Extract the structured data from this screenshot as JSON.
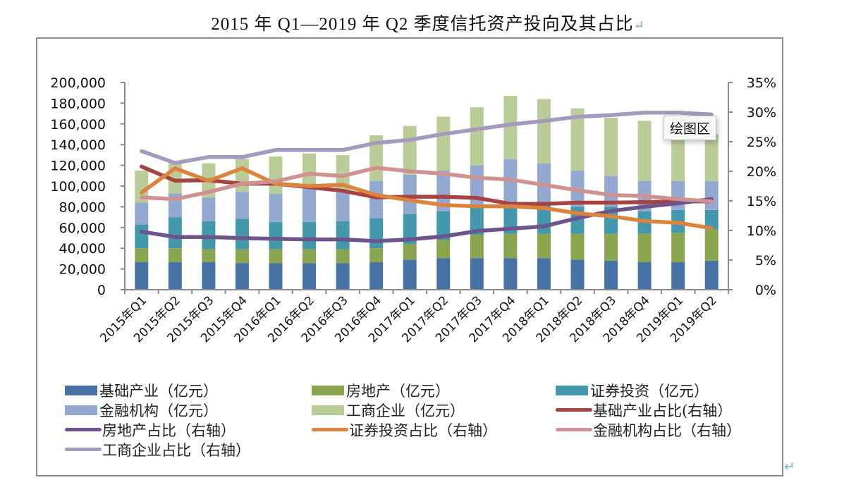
{
  "title": "2015 年 Q1—2019 年 Q2 季度信托资产投向及其占比",
  "return_mark": "↵",
  "tooltip": "绘图区",
  "colors": {
    "infra_bar": "#4672a6",
    "realestate_bar": "#89a54e",
    "securities_bar": "#4398ae",
    "financial_bar": "#93a9d0",
    "commercial_bar": "#bacc98",
    "infra_line": "#a74340",
    "realestate_line": "#6e548c",
    "securities_line": "#db843d",
    "financial_line": "#d09290",
    "commercial_line": "#a599bd"
  },
  "chart_data": {
    "type": "bar",
    "subtype": "stacked-bar-with-lines-dual-axis",
    "title": "2015 年 Q1—2019 年 Q2 季度信托资产投向及其占比",
    "categories": [
      "2015年Q1",
      "2015年Q2",
      "2015年Q3",
      "2015年Q4",
      "2016年Q1",
      "2016年Q2",
      "2016年Q3",
      "2016年Q4",
      "2017年Q1",
      "2017年Q2",
      "2017年Q3",
      "2017年Q4",
      "2018年Q1",
      "2018年Q2",
      "2018年Q3",
      "2018年Q4",
      "2019年Q1",
      "2019年Q2"
    ],
    "left_axis": {
      "min": 0,
      "max": 200000,
      "step": 20000,
      "tick_labels": [
        "0",
        "20,000",
        "40,000",
        "60,000",
        "80,000",
        "100,000",
        "120,000",
        "140,000",
        "160,000",
        "180,000",
        "200,000"
      ]
    },
    "right_axis": {
      "min": 0,
      "max": 35,
      "step": 5,
      "unit": "%",
      "tick_labels": [
        "0%",
        "5%",
        "10%",
        "15%",
        "20%",
        "25%",
        "30%",
        "35%"
      ]
    },
    "grid": false,
    "legend_position": "bottom",
    "bar_series": [
      {
        "name": "基础产业（亿元）",
        "key": "infra",
        "values": [
          26500,
          26500,
          26500,
          25500,
          25500,
          25500,
          25500,
          26500,
          29000,
          30500,
          30500,
          30500,
          30500,
          29000,
          28000,
          26500,
          26500,
          28000
        ]
      },
      {
        "name": "房地产（亿元）",
        "key": "realestate",
        "values": [
          13500,
          13500,
          12500,
          13500,
          13500,
          13500,
          13500,
          13500,
          15000,
          17500,
          22500,
          23500,
          23500,
          25000,
          26000,
          27500,
          28500,
          30000
        ]
      },
      {
        "name": "证券投资（亿元）",
        "key": "securities",
        "values": [
          23000,
          30000,
          27000,
          29500,
          26500,
          26500,
          27000,
          29000,
          29000,
          27500,
          28000,
          31000,
          30000,
          26000,
          26000,
          21500,
          22000,
          19000
        ]
      },
      {
        "name": "金融机构（亿元）",
        "key": "financial",
        "values": [
          21000,
          23000,
          23000,
          26000,
          27000,
          32000,
          28000,
          36000,
          38000,
          39500,
          39000,
          41000,
          38000,
          35000,
          30000,
          29500,
          28000,
          28000
        ]
      },
      {
        "name": "工商企业（亿元）",
        "key": "commercial",
        "values": [
          31000,
          29000,
          33000,
          32000,
          36000,
          34000,
          36000,
          44000,
          47000,
          52000,
          56000,
          61000,
          62000,
          60000,
          56000,
          58000,
          47000,
          45000
        ]
      }
    ],
    "line_series": [
      {
        "name": "基础产业占比(右轴）",
        "key": "infra",
        "axis": "right",
        "values": [
          20.8,
          18.4,
          18.5,
          17.9,
          17.9,
          17.3,
          16.7,
          15.6,
          15.7,
          15.7,
          15.5,
          14.5,
          14.5,
          14.7,
          14.7,
          14.8,
          14.9,
          14.9
        ]
      },
      {
        "name": "房地产占比（右轴）",
        "key": "realestate",
        "axis": "right",
        "values": [
          9.8,
          8.9,
          8.9,
          8.7,
          8.6,
          8.5,
          8.5,
          8.2,
          8.5,
          9.0,
          9.9,
          10.3,
          10.7,
          12.1,
          13.3,
          14.0,
          14.6,
          15.3
        ]
      },
      {
        "name": "证券投资占比（右轴）",
        "key": "securities",
        "axis": "right",
        "values": [
          16.4,
          20.5,
          18.4,
          20.5,
          17.9,
          17.5,
          17.7,
          16.0,
          15.1,
          14.3,
          14.1,
          14.1,
          13.8,
          12.9,
          12.4,
          11.6,
          11.3,
          10.4
        ]
      },
      {
        "name": "金融机构占比（右轴）",
        "key": "financial",
        "axis": "right",
        "values": [
          15.6,
          15.3,
          16.5,
          17.9,
          18.3,
          19.6,
          19.2,
          20.6,
          20.0,
          19.6,
          18.9,
          18.6,
          17.7,
          16.8,
          16.0,
          15.8,
          15.3,
          14.9
        ]
      },
      {
        "name": "工商企业占比（右轴）",
        "key": "commercial",
        "axis": "right",
        "values": [
          23.4,
          21.4,
          22.4,
          22.4,
          23.6,
          23.6,
          23.6,
          24.8,
          25.3,
          26.3,
          27.1,
          27.9,
          28.5,
          29.2,
          29.5,
          29.9,
          29.9,
          29.6
        ]
      }
    ],
    "legend": [
      {
        "label": "基础产业（亿元）",
        "type": "bar",
        "key": "infra"
      },
      {
        "label": "房地产（亿元）",
        "type": "bar",
        "key": "realestate"
      },
      {
        "label": "证券投资（亿元）",
        "type": "bar",
        "key": "securities"
      },
      {
        "label": "金融机构（亿元）",
        "type": "bar",
        "key": "financial"
      },
      {
        "label": "工商企业（亿元）",
        "type": "bar",
        "key": "commercial"
      },
      {
        "label": "基础产业占比(右轴）",
        "type": "line",
        "key": "infra"
      },
      {
        "label": "房地产占比（右轴）",
        "type": "line",
        "key": "realestate"
      },
      {
        "label": "证券投资占比（右轴）",
        "type": "line",
        "key": "securities"
      },
      {
        "label": "金融机构占比（右轴）",
        "type": "line",
        "key": "financial"
      },
      {
        "label": "工商企业占比（右轴）",
        "type": "line",
        "key": "commercial"
      }
    ]
  }
}
